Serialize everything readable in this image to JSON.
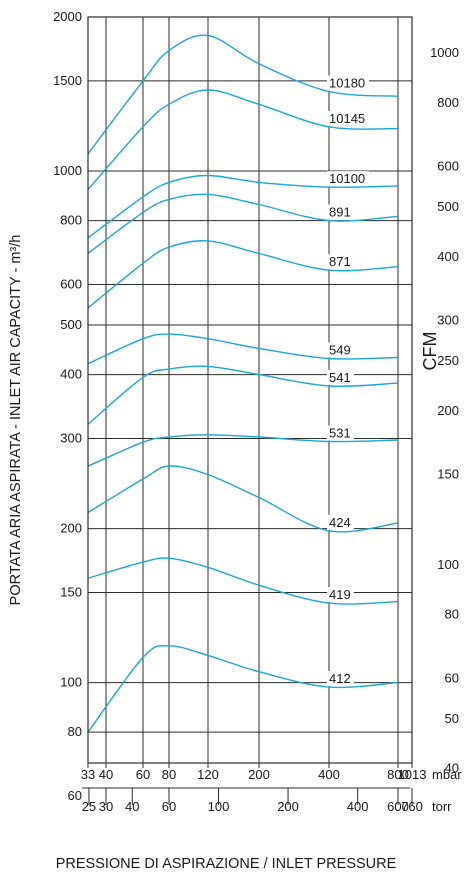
{
  "chart_data": {
    "type": "line",
    "ylabel": "PORTATA ARIA ASPIRATA - INLET AIR CAPACITY - m³/h",
    "ylabel_right": "CFM",
    "xlabel": "PRESSIONE DI ASPIRAZIONE / INLET PRESSURE",
    "x_scale": "log",
    "y_scale": "log",
    "xlim": [
      33,
      1013
    ],
    "ylim": [
      60,
      2000
    ],
    "x_ticks_mbar": [
      "33",
      "40",
      "60",
      "80",
      "120",
      "200",
      "400",
      "800",
      "1013"
    ],
    "x_unit_mbar": "mbar",
    "x_ticks_torr": [
      "25",
      "30",
      "40",
      "60",
      "100",
      "200",
      "400",
      "600",
      "760"
    ],
    "x_unit_torr": "torr",
    "y_ticks_m3h": [
      "2000",
      "1500",
      "1000",
      "800",
      "600",
      "500",
      "400",
      "300",
      "200",
      "150",
      "100",
      "80",
      "60"
    ],
    "y_ticks_cfm": [
      "1000",
      "800",
      "600",
      "500",
      "400",
      "300",
      "250",
      "200",
      "150",
      "100",
      "80",
      "60",
      "50",
      "40"
    ],
    "grid": true,
    "line_color": "#1aa7d8",
    "series": [
      {
        "name": "10180",
        "x": [
          33,
          60,
          80,
          120,
          200,
          400,
          800
        ],
        "y": [
          1080,
          1500,
          1720,
          1840,
          1620,
          1430,
          1400
        ]
      },
      {
        "name": "10145",
        "x": [
          33,
          60,
          80,
          120,
          200,
          400,
          800
        ],
        "y": [
          920,
          1220,
          1350,
          1440,
          1350,
          1220,
          1210
        ]
      },
      {
        "name": "10100",
        "x": [
          33,
          60,
          80,
          120,
          200,
          400,
          800
        ],
        "y": [
          740,
          890,
          950,
          980,
          950,
          930,
          935
        ]
      },
      {
        "name": "891",
        "x": [
          33,
          60,
          80,
          120,
          200,
          400,
          800
        ],
        "y": [
          690,
          830,
          880,
          900,
          860,
          800,
          815
        ]
      },
      {
        "name": "871",
        "x": [
          33,
          60,
          80,
          120,
          200,
          400,
          800
        ],
        "y": [
          540,
          660,
          710,
          730,
          690,
          640,
          650
        ]
      },
      {
        "name": "549",
        "x": [
          33,
          60,
          80,
          120,
          200,
          400,
          800
        ],
        "y": [
          420,
          470,
          480,
          470,
          450,
          430,
          432
        ]
      },
      {
        "name": "541",
        "x": [
          33,
          60,
          80,
          120,
          200,
          400,
          800
        ],
        "y": [
          320,
          395,
          410,
          415,
          400,
          380,
          385
        ]
      },
      {
        "name": "531",
        "x": [
          33,
          60,
          80,
          120,
          200,
          400,
          800
        ],
        "y": [
          265,
          295,
          302,
          305,
          302,
          296,
          298
        ]
      },
      {
        "name": "424",
        "x": [
          33,
          60,
          80,
          120,
          200,
          400,
          800
        ],
        "y": [
          215,
          250,
          265,
          255,
          230,
          198,
          205
        ]
      },
      {
        "name": "419",
        "x": [
          33,
          60,
          80,
          120,
          200,
          400,
          800
        ],
        "y": [
          160,
          172,
          175,
          168,
          155,
          143,
          144
        ]
      },
      {
        "name": "412",
        "x": [
          33,
          60,
          80,
          120,
          200,
          400,
          800
        ],
        "y": [
          80,
          112,
          118,
          113,
          105,
          98,
          100
        ]
      }
    ]
  }
}
